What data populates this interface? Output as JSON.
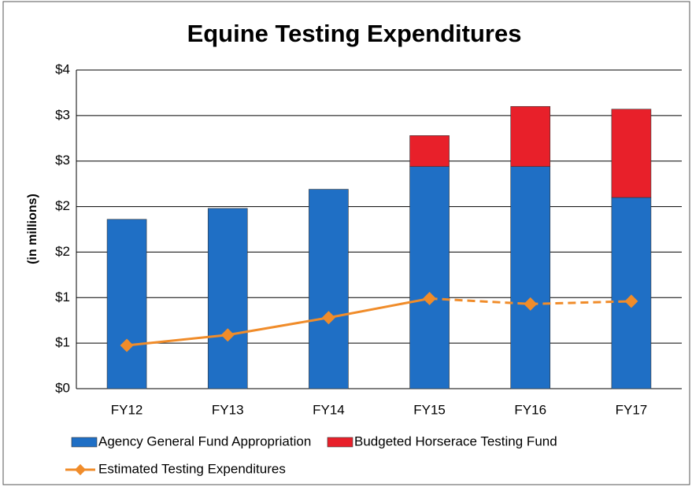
{
  "chart_data": {
    "type": "bar",
    "title": "Equine Testing Expenditures",
    "y_label": "(in millions)",
    "categories": [
      "FY12",
      "FY13",
      "FY14",
      "FY15",
      "FY16",
      "FY17"
    ],
    "series": [
      {
        "name": "Agency General Fund Appropriation",
        "color": "#1f6fc5",
        "values": [
          1.86,
          1.98,
          2.19,
          2.44,
          2.44,
          2.1
        ],
        "stack": true
      },
      {
        "name": "Budgeted Horserace Testing Fund",
        "color": "#e8202a",
        "values": [
          null,
          null,
          null,
          0.34,
          0.66,
          0.97
        ],
        "stack": true
      },
      {
        "name": "Estimated Testing Expenditures",
        "color": "#f08c2a",
        "type": "line",
        "values": [
          0.475,
          0.59,
          0.78,
          0.99,
          0.93,
          0.96
        ],
        "dashed_from_index": 3
      }
    ],
    "ylim": [
      0,
      3.5
    ],
    "yticks": [
      {
        "value": 0,
        "label": "$0"
      },
      {
        "value": 0.5,
        "label": "$1"
      },
      {
        "value": 1,
        "label": "$1"
      },
      {
        "value": 1.5,
        "label": "$2"
      },
      {
        "value": 2,
        "label": "$2"
      },
      {
        "value": 2.5,
        "label": "$3"
      },
      {
        "value": 3,
        "label": "$3"
      },
      {
        "value": 3.5,
        "label": "$4"
      }
    ],
    "grid": true,
    "legend": "bottom"
  }
}
